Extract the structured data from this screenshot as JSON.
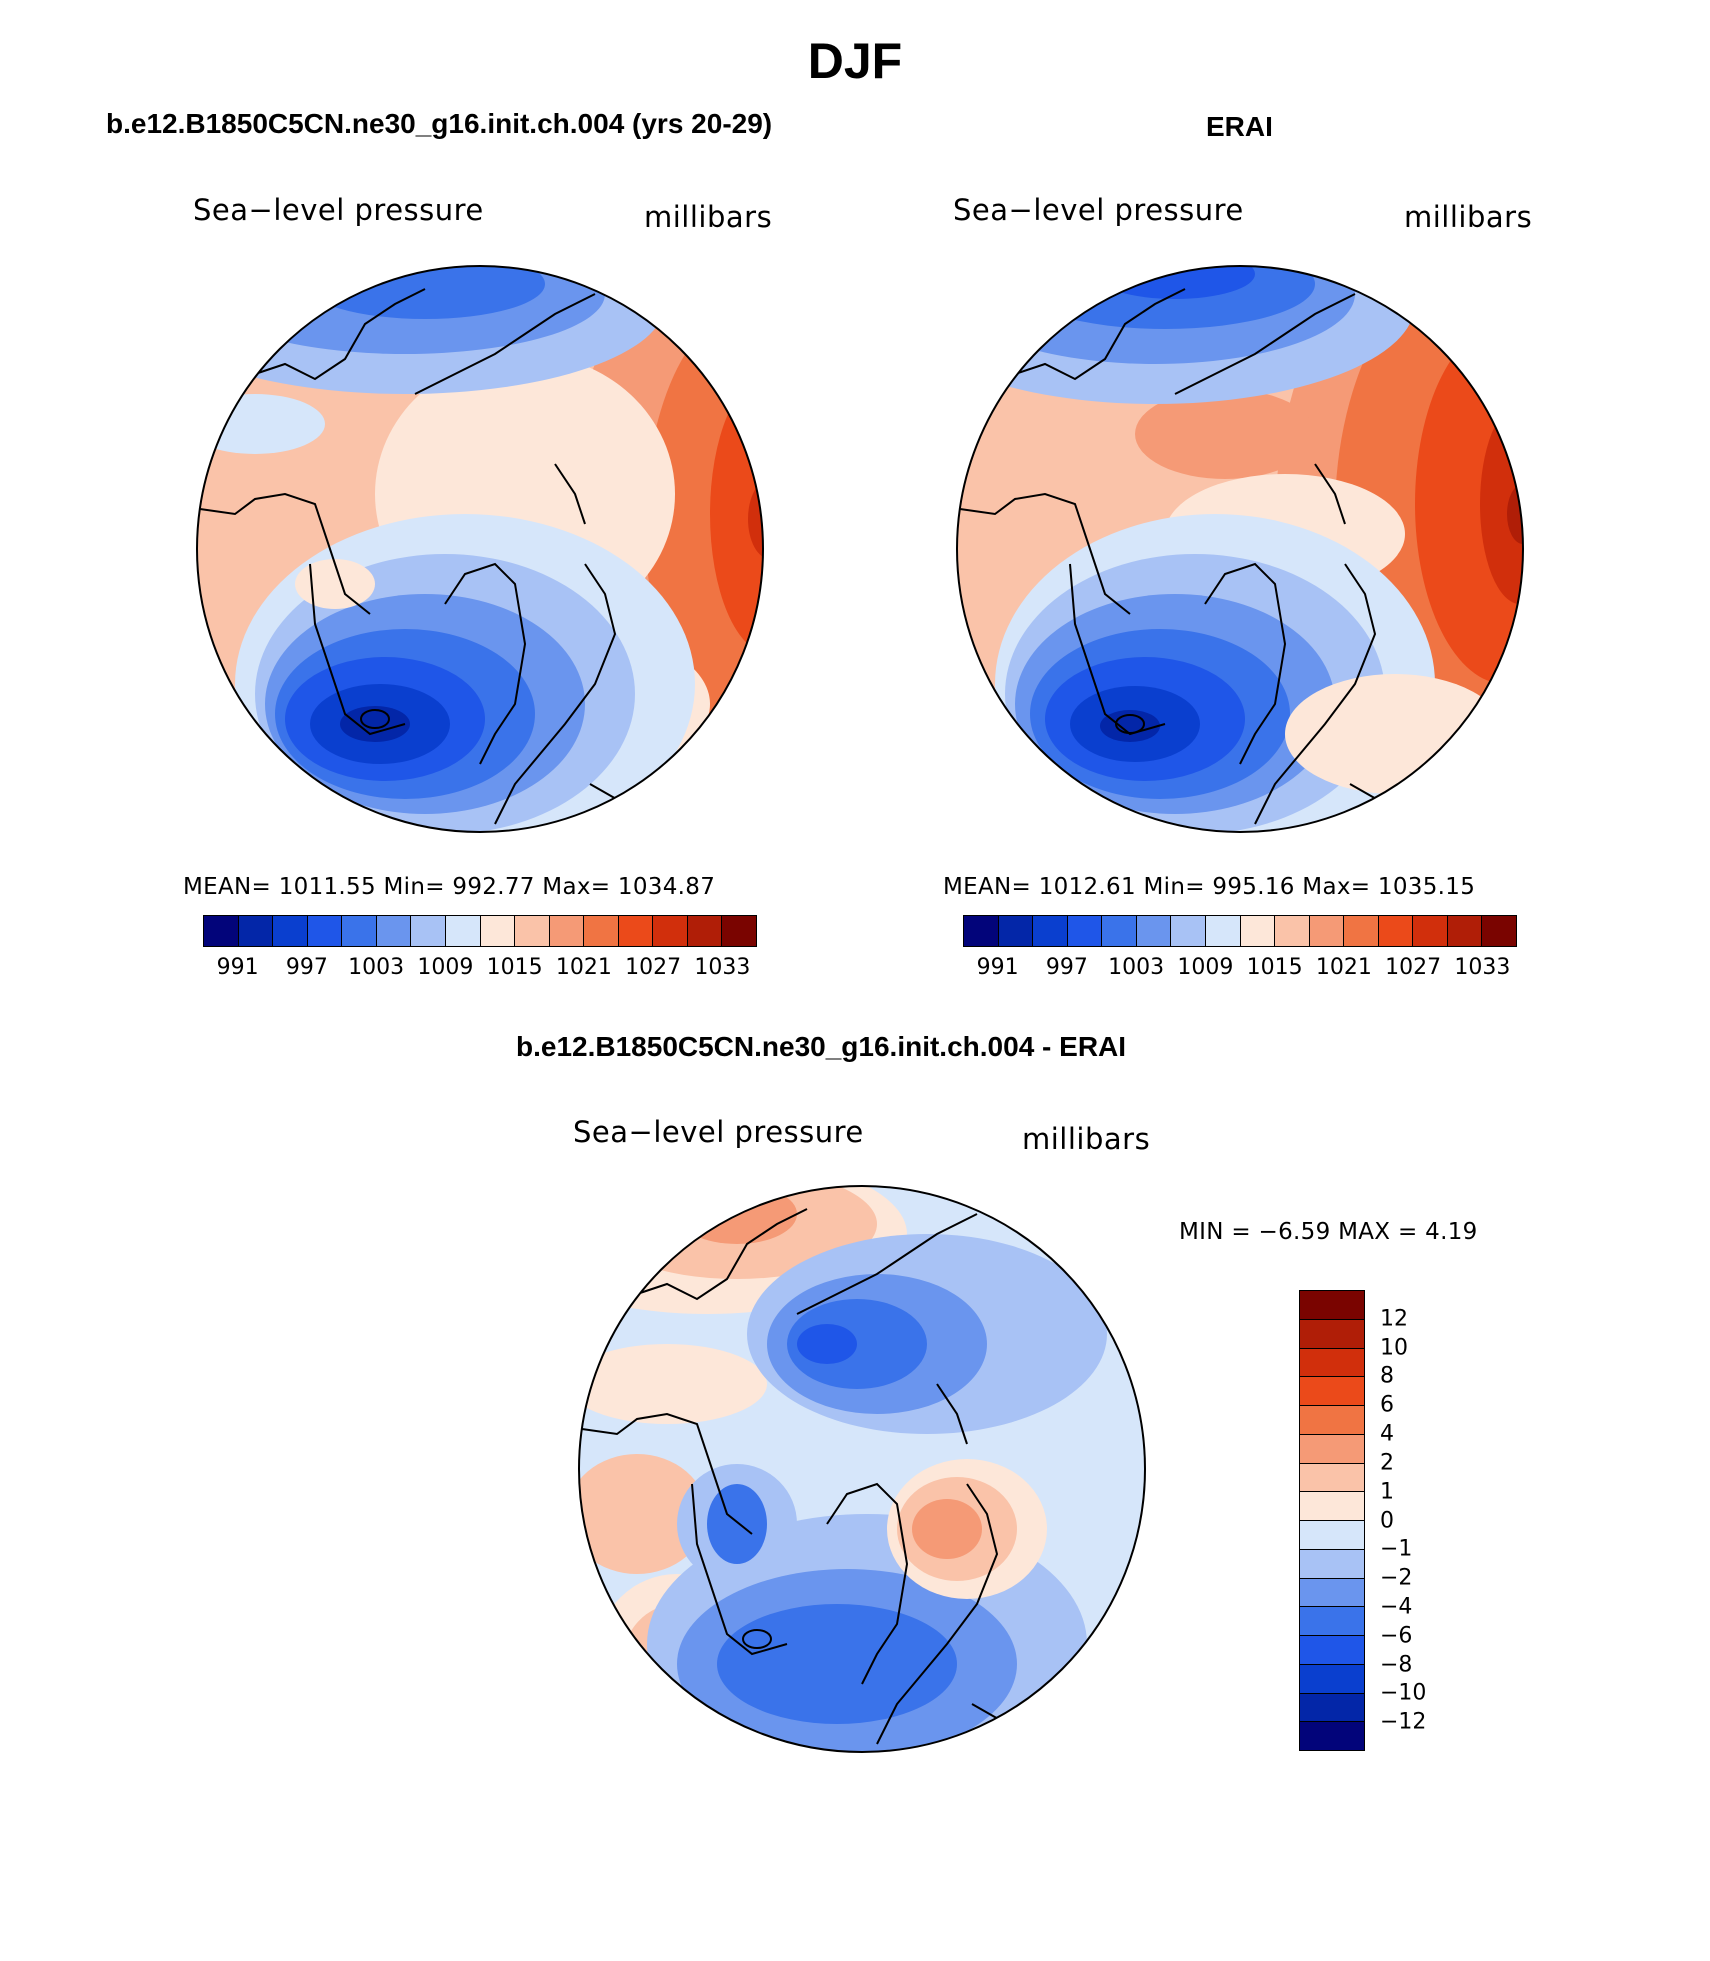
{
  "figure_title": "DJF",
  "palette": [
    "#02047a",
    "#0326a8",
    "#0a3fcf",
    "#1f56e8",
    "#3a73ea",
    "#6a95ee",
    "#a8c2f5",
    "#d6e6fa",
    "#fde7d9",
    "#fac3a9",
    "#f59a76",
    "#f07443",
    "#eb4a1a",
    "#d12f0c",
    "#b01e07",
    "#7a0400"
  ],
  "diff_palette": [
    "#02047a",
    "#0326a8",
    "#0a3fcf",
    "#1f56e8",
    "#3a73ea",
    "#6a95ee",
    "#a8c2f5",
    "#d6e6fa",
    "#fde7d9",
    "#fac3a9",
    "#f59a76",
    "#f07443",
    "#eb4a1a",
    "#d12f0c",
    "#b01e07",
    "#7a0400"
  ],
  "panels": {
    "model": {
      "title": "b.e12.B1850C5CN.ne30_g16.init.ch.004 (yrs 20-29)",
      "variable": "Sea−level pressure",
      "units": "millibars",
      "stats": "MEAN= 1011.55   Min= 992.77   Max= 1034.87",
      "ticks": [
        "991",
        "997",
        "1003",
        "1009",
        "1015",
        "1021",
        "1027",
        "1033"
      ]
    },
    "obs": {
      "title": "ERAI",
      "variable": "Sea−level pressure",
      "units": "millibars",
      "stats": "MEAN= 1012.61   Min= 995.16   Max= 1035.15",
      "ticks": [
        "991",
        "997",
        "1003",
        "1009",
        "1015",
        "1021",
        "1027",
        "1033"
      ]
    },
    "diff": {
      "title": "b.e12.B1850C5CN.ne30_g16.init.ch.004 - ERAI",
      "variable": "Sea−level pressure",
      "units": "millibars",
      "stats": "MIN =   −6.59  MAX =    4.19",
      "ticks": [
        "12",
        "10",
        "8",
        "6",
        "4",
        "2",
        "1",
        "0",
        "−1",
        "−2",
        "−4",
        "−6",
        "−8",
        "−10",
        "−12"
      ]
    }
  }
}
